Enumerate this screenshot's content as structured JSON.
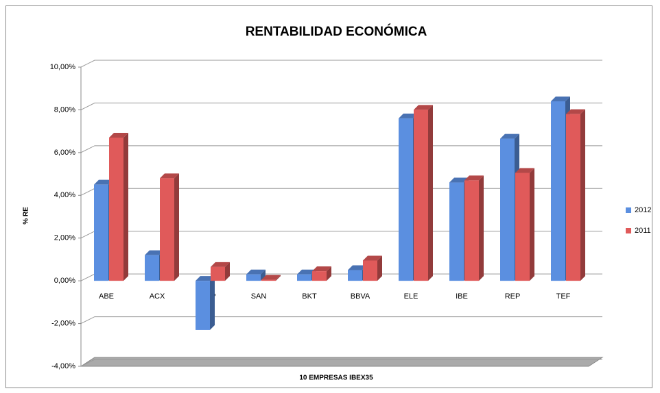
{
  "chart_data": {
    "type": "bar",
    "title": "RENTABILIDAD ECONÓMICA",
    "x_label": "10 EMPRESAS IBEX35",
    "y_label": "% RE",
    "categories": [
      "ABE",
      "ACX",
      "POP",
      "SAN",
      "BKT",
      "BBVA",
      "ELE",
      "IBE",
      "REP",
      "TEF"
    ],
    "series": [
      {
        "name": "2012",
        "color": "#5b8fe0",
        "values": [
          4.5,
          1.2,
          -2.3,
          0.3,
          0.3,
          0.5,
          7.6,
          4.6,
          6.65,
          8.4
        ]
      },
      {
        "name": "2011",
        "color": "#e05a5a",
        "values": [
          6.7,
          4.8,
          0.65,
          0.05,
          0.45,
          0.95,
          8.0,
          4.7,
          5.05,
          7.8
        ]
      }
    ],
    "ylim": [
      -4,
      10
    ],
    "yticks": [
      {
        "value": -4,
        "label": "-4,00%"
      },
      {
        "value": -2,
        "label": "-2,00%"
      },
      {
        "value": 0,
        "label": "0,00%"
      },
      {
        "value": 2,
        "label": "2,00%"
      },
      {
        "value": 4,
        "label": "4,00%"
      },
      {
        "value": 6,
        "label": "6,00%"
      },
      {
        "value": 8,
        "label": "8,00%"
      },
      {
        "value": 10,
        "label": "10,00%"
      }
    ],
    "grid": true,
    "legend": "right"
  }
}
